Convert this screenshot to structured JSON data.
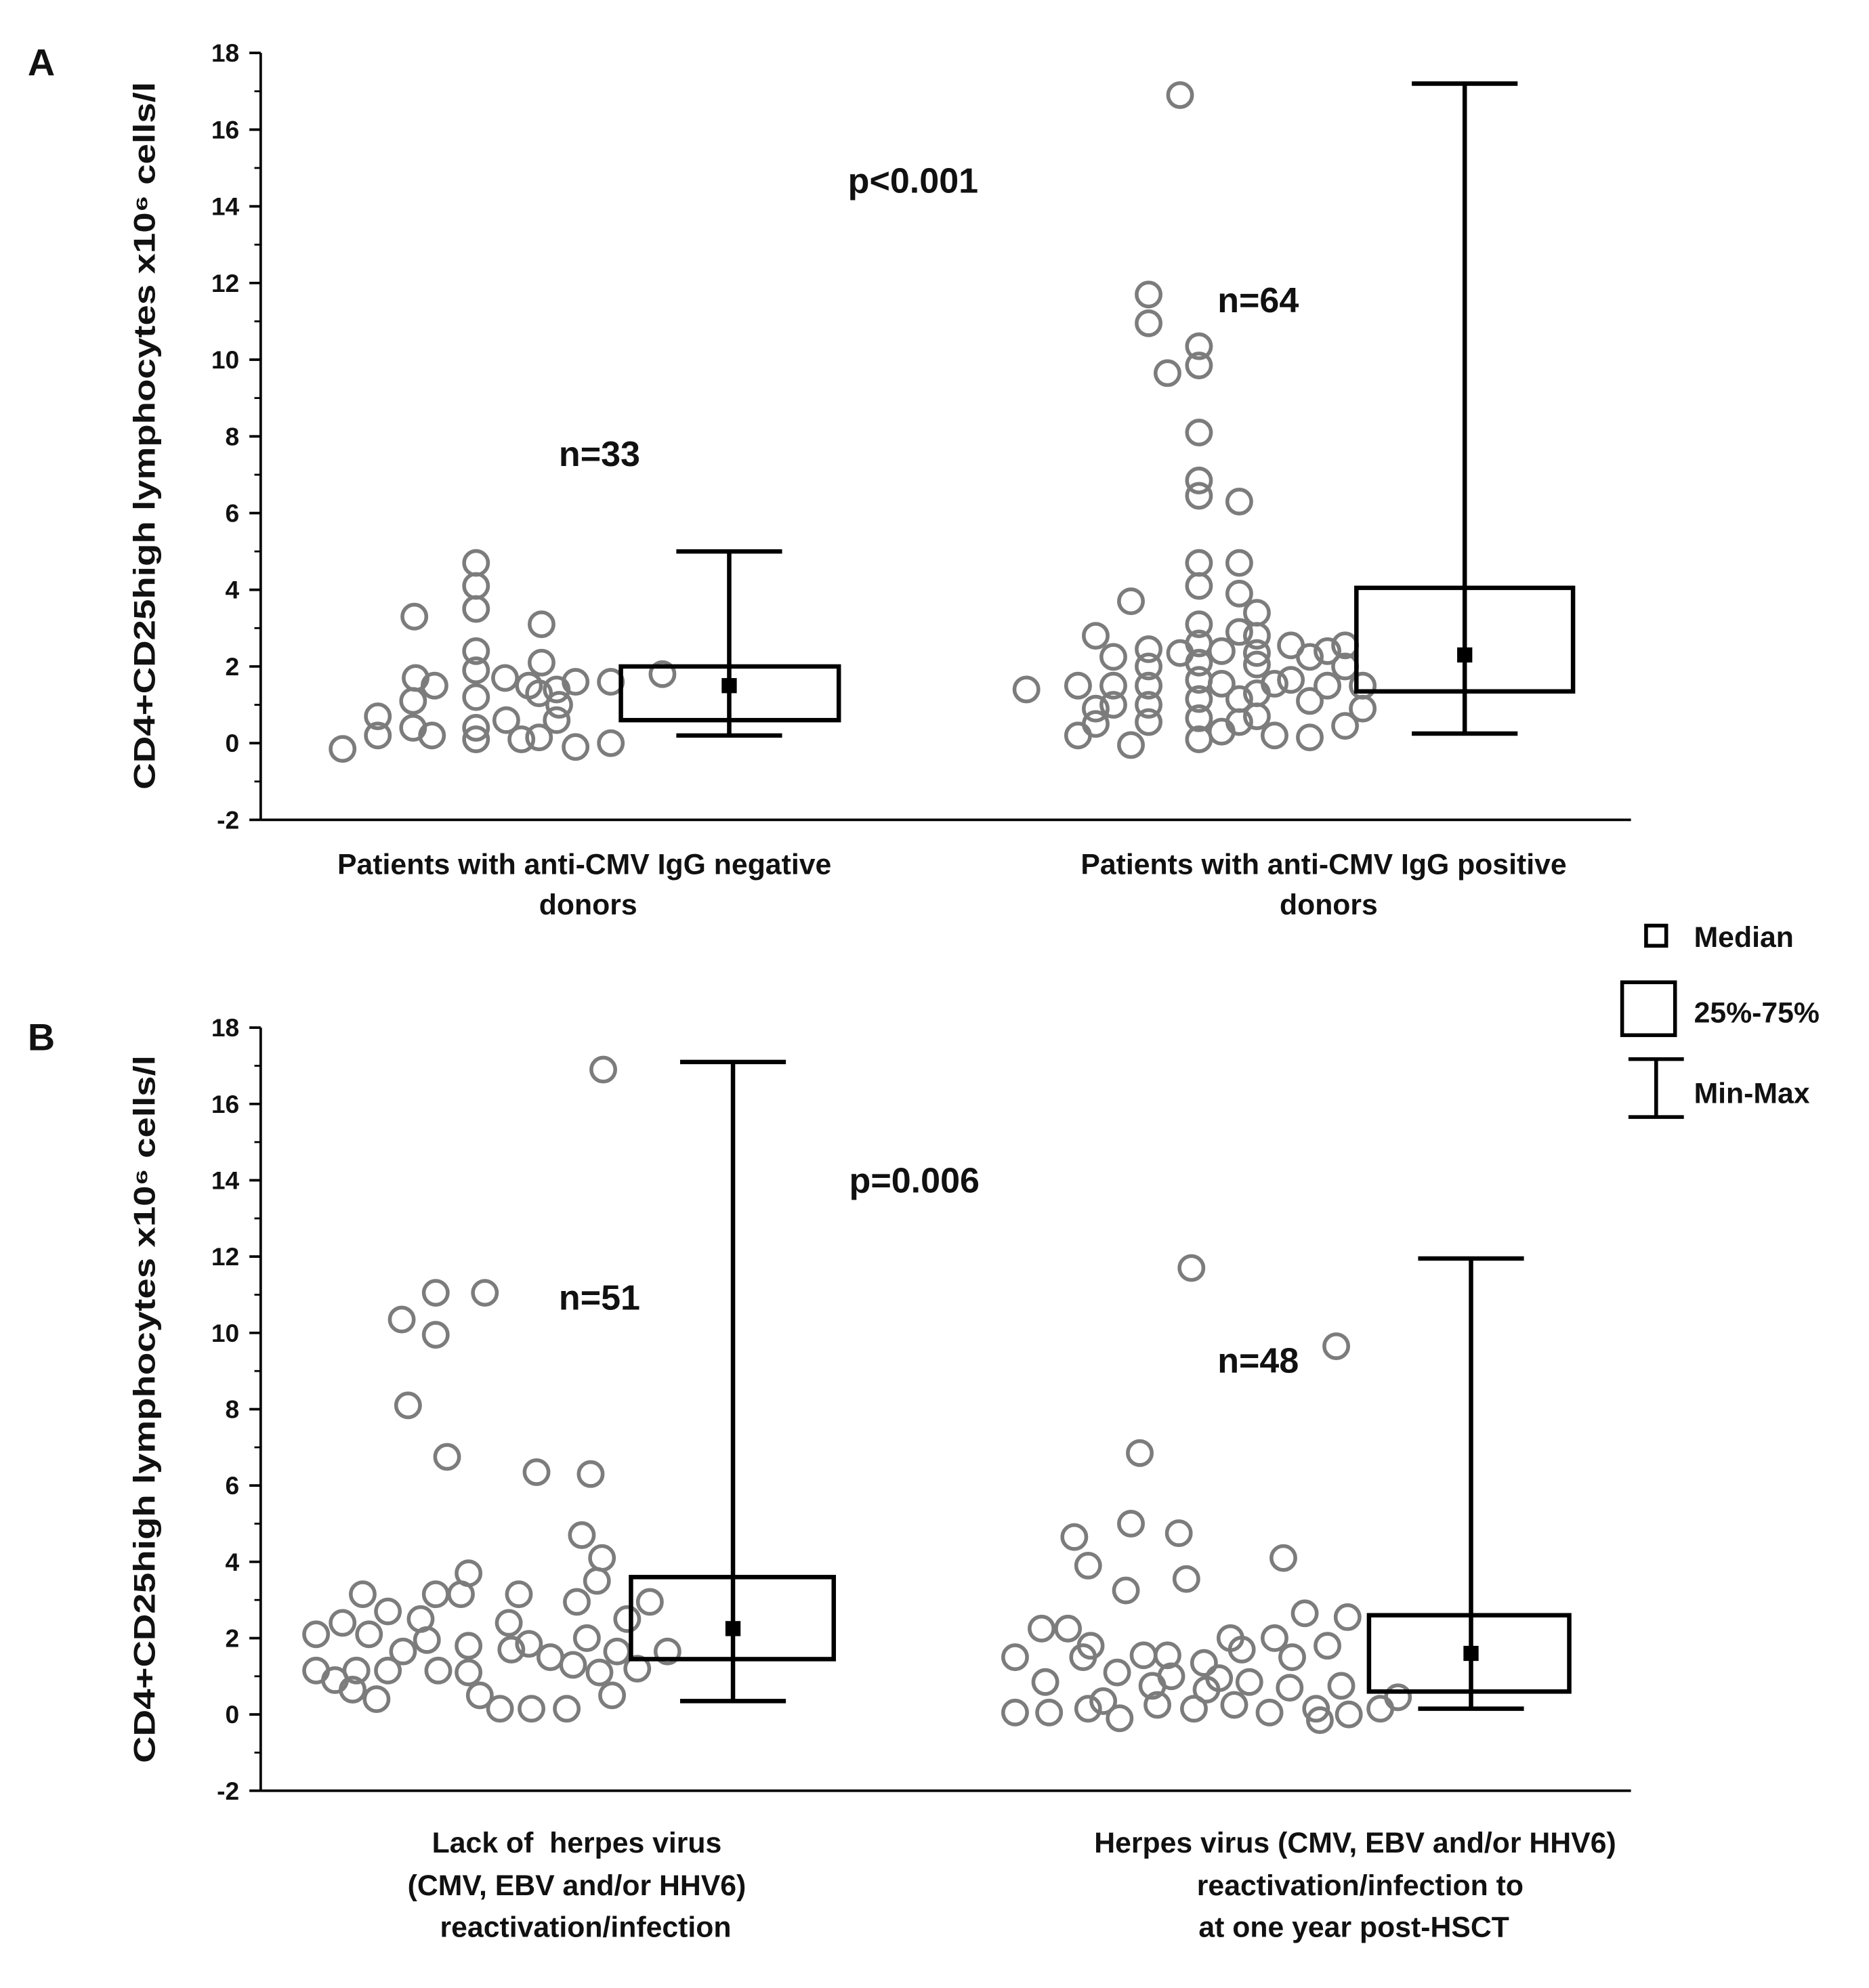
{
  "figure": {
    "legend": {
      "median": "Median",
      "iqr": "25%-75%",
      "range": "Min-Max"
    },
    "colors": {
      "point_stroke": "#7c7c7c",
      "box_stroke": "#000000",
      "axis": "#000000",
      "text": "#111111",
      "background": "#ffffff"
    }
  },
  "chart_data": [
    {
      "panel": "A",
      "type": "scatter",
      "title": "",
      "xlabel": "",
      "ylabel": "CD4+CD25high lymphocytes x10⁶ cells/l",
      "ylim": [
        -2,
        18
      ],
      "y_ticks": [
        18,
        16,
        14,
        12,
        10,
        8,
        6,
        4,
        2,
        0,
        -2
      ],
      "annotation": "p<0.001",
      "groups": [
        {
          "label_lines": [
            "Patients with anti-CMV IgG negative",
            "donors"
          ],
          "n_label": "n=33",
          "values": [
            -0.15,
            0.2,
            0.7,
            0.4,
            1.1,
            1.7,
            1.5,
            0.2,
            3.3,
            4.7,
            4.1,
            3.5,
            2.4,
            1.9,
            1.2,
            0.4,
            0.1,
            1.7,
            0.6,
            0.1,
            1.5,
            0.15,
            3.1,
            2.1,
            1.3,
            0.6,
            1.4,
            1.6,
            -0.1,
            1.6,
            0.0,
            1.8,
            1.0
          ],
          "box": {
            "q1": 0.6,
            "median": 1.5,
            "q3": 2.0,
            "min": 0.2,
            "max": 5.0
          }
        },
        {
          "label_lines": [
            "Patients with anti-CMV IgG positive",
            "donors"
          ],
          "n_label": "n=64",
          "values": [
            16.9,
            11.7,
            10.95,
            10.35,
            9.85,
            9.65,
            8.1,
            6.85,
            6.45,
            6.3,
            3.7,
            4.7,
            4.1,
            3.1,
            2.6,
            2.1,
            1.65,
            1.15,
            0.65,
            0.1,
            4.7,
            3.9,
            3.4,
            2.9,
            2.8,
            2.4,
            2.35,
            2.05,
            1.3,
            1.15,
            0.55,
            0.3,
            0.7,
            0.2,
            2.55,
            1.65,
            2.25,
            1.1,
            0.15,
            1.5,
            2.55,
            2.0,
            0.45,
            1.5,
            0.9,
            2.8,
            2.25,
            1.5,
            0.9,
            0.2,
            0.5,
            -0.05,
            2.45,
            2.0,
            1.5,
            1.0,
            0.55,
            1.5,
            1.0,
            1.4,
            1.55,
            1.55,
            2.35,
            2.4
          ],
          "box": {
            "q1": 1.35,
            "median": 2.3,
            "q3": 4.05,
            "min": 0.25,
            "max": 17.2
          }
        }
      ]
    },
    {
      "panel": "B",
      "type": "scatter",
      "title": "",
      "xlabel": "",
      "ylabel": "CD4+CD25high lymphocytes x10⁶ cells/l",
      "ylim": [
        -2,
        18
      ],
      "y_ticks": [
        18,
        16,
        14,
        12,
        10,
        8,
        6,
        4,
        2,
        0,
        -2
      ],
      "annotation": "p=0.006",
      "groups": [
        {
          "label_lines": [
            "Lack of  herpes virus",
            "(CMV, EBV and/or HHV6)",
            "reactivation/infection"
          ],
          "n_label": "n=51",
          "values": [
            16.9,
            11.05,
            11.05,
            10.35,
            9.95,
            8.1,
            6.75,
            6.35,
            6.3,
            4.7,
            4.1,
            3.5,
            3.7,
            3.15,
            3.15,
            3.15,
            2.95,
            2.95,
            3.15,
            2.7,
            2.4,
            2.4,
            2.5,
            2.5,
            2.1,
            2.1,
            1.95,
            1.8,
            1.65,
            1.7,
            1.85,
            1.5,
            1.3,
            1.1,
            1.65,
            1.2,
            1.65,
            1.15,
            1.15,
            1.15,
            1.15,
            1.1,
            0.65,
            0.4,
            0.5,
            0.15,
            0.15,
            0.15,
            0.5,
            2.0,
            0.9
          ],
          "box": {
            "q1": 1.45,
            "median": 2.25,
            "q3": 3.6,
            "min": 0.35,
            "max": 17.1
          }
        },
        {
          "label_lines": [
            "Herpes virus (CMV, EBV and/or HHV6)",
            "reactivation/infection to",
            "at one year post-HSCT"
          ],
          "n_label": "n=48",
          "values": [
            11.7,
            9.65,
            6.85,
            5.0,
            4.65,
            4.75,
            4.1,
            3.9,
            3.55,
            3.25,
            2.25,
            2.25,
            2.0,
            2.0,
            2.65,
            2.55,
            1.8,
            1.8,
            1.7,
            1.5,
            1.5,
            1.55,
            1.55,
            1.35,
            1.5,
            1.1,
            1.0,
            0.95,
            0.85,
            0.85,
            0.75,
            0.65,
            0.7,
            0.75,
            0.35,
            0.15,
            0.05,
            0.05,
            -0.1,
            0.25,
            0.15,
            0.25,
            0.05,
            0.15,
            -0.15,
            0.0,
            0.15,
            0.45
          ],
          "box": {
            "q1": 0.6,
            "median": 1.6,
            "q3": 2.6,
            "min": 0.15,
            "max": 11.95
          }
        }
      ]
    }
  ]
}
